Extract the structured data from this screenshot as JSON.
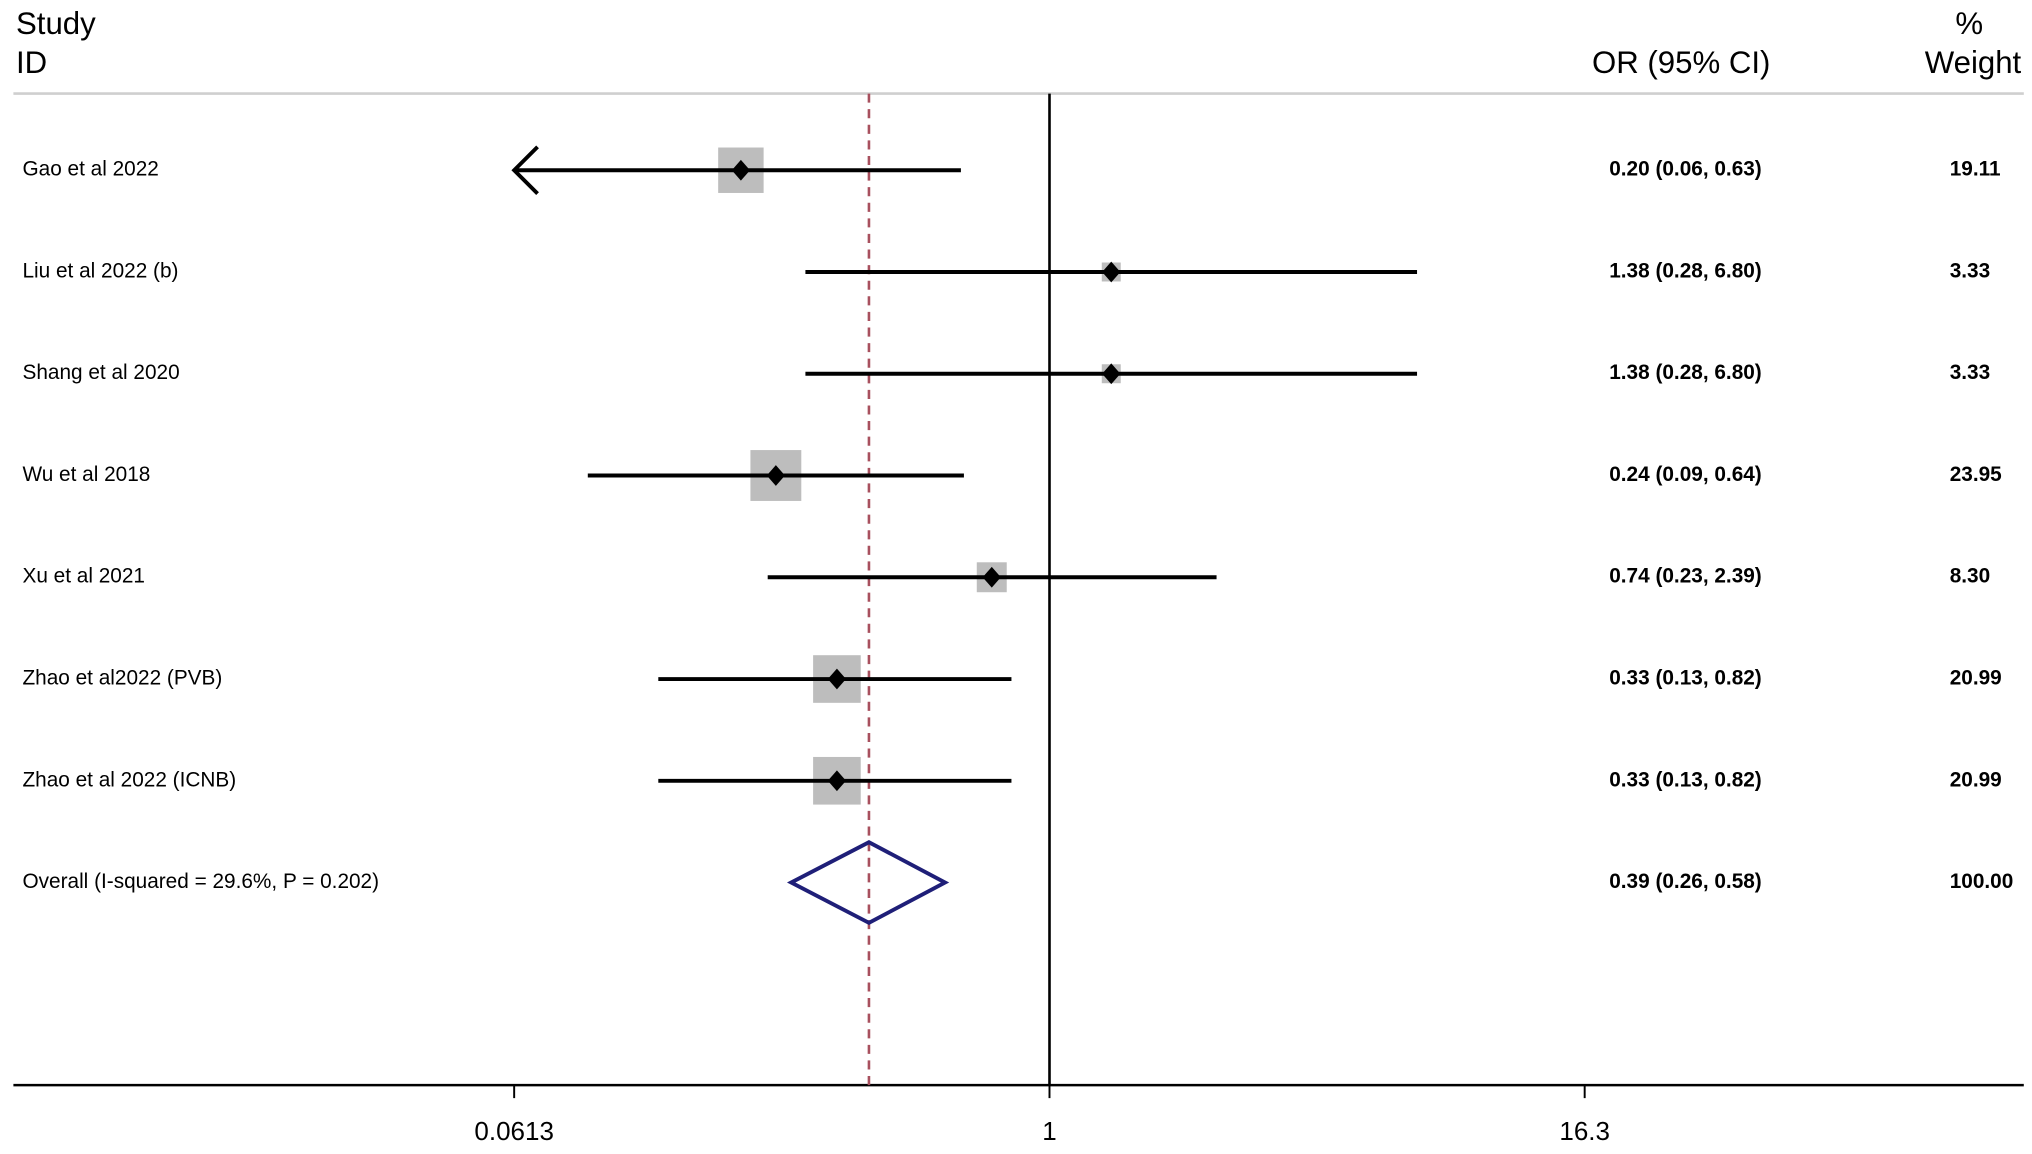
{
  "chart_data": {
    "type": "forest",
    "headers": {
      "study": "Study",
      "id": "ID",
      "effect": "OR (95% CI)",
      "pct": "%",
      "weight": "Weight"
    },
    "categories": [
      "Gao et al 2022",
      "Liu et al 2022 (b)",
      "Shang et al 2020",
      "Wu et al 2018",
      "Xu et al 2021",
      "Zhao et al2022 (PVB)",
      "Zhao et al 2022 (ICNB)"
    ],
    "values": [
      0.2,
      1.38,
      1.38,
      0.24,
      0.74,
      0.33,
      0.33
    ],
    "lower": [
      0.06,
      0.28,
      0.28,
      0.09,
      0.23,
      0.13,
      0.13
    ],
    "upper": [
      0.63,
      6.8,
      6.8,
      0.64,
      2.39,
      0.82,
      0.82
    ],
    "value_labels": [
      "0.20 (0.06, 0.63)",
      "1.38 (0.28, 6.80)",
      "1.38 (0.28, 6.80)",
      "0.24 (0.09, 0.64)",
      "0.74 (0.23, 2.39)",
      "0.33 (0.13, 0.82)",
      "0.33 (0.13, 0.82)"
    ],
    "weights": [
      19.11,
      3.33,
      3.33,
      23.95,
      8.3,
      20.99,
      20.99
    ],
    "weight_labels": [
      "19.11",
      "3.33",
      "3.33",
      "23.95",
      "8.30",
      "20.99",
      "20.99"
    ],
    "overall": {
      "name": "Overall  (I-squared = 29.6%, P = 0.202)",
      "value": 0.39,
      "lower": 0.26,
      "upper": 0.58,
      "value_label": "0.39 (0.26, 0.58)",
      "weight": 100,
      "weight_label": "100.00"
    },
    "xlim": [
      0.0045,
      161
    ],
    "xticks": [
      0.0613,
      1,
      16.3
    ],
    "log_scale": true,
    "color": "#bdbdbd",
    "point_color": "#000000",
    "diamond_color": "#1f1f78",
    "reference_color": "#a8505e"
  }
}
